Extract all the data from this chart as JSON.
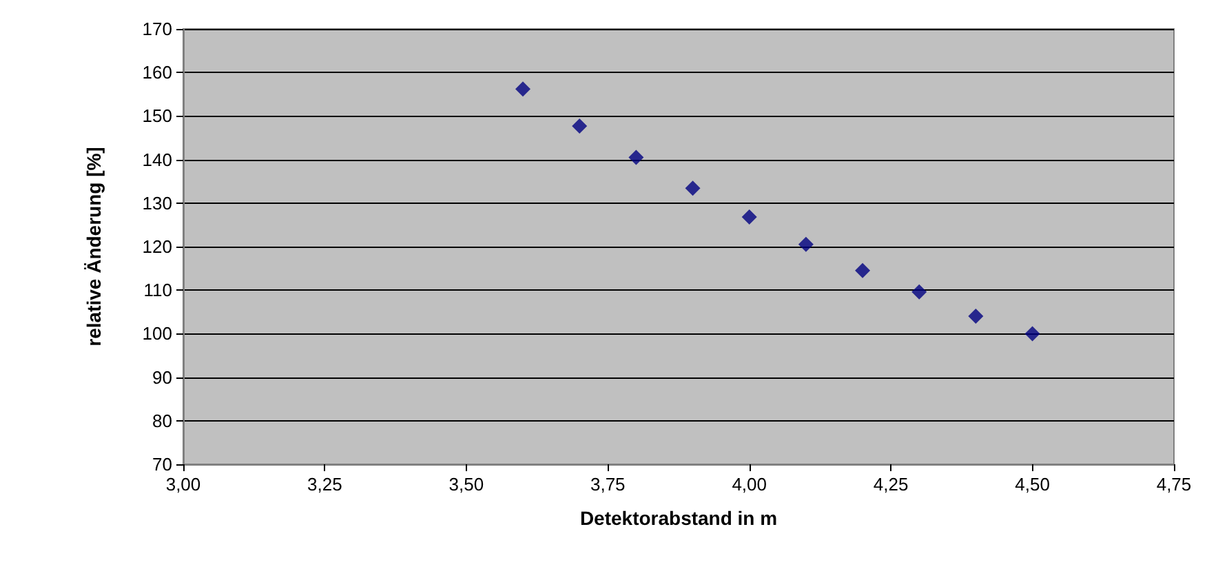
{
  "chart_data": {
    "type": "scatter",
    "xlabel": "Detektorabstand in m",
    "ylabel": "relative Änderung [%]",
    "x": [
      3.6,
      3.7,
      3.8,
      3.9,
      4.0,
      4.1,
      4.2,
      4.3,
      4.4,
      4.5
    ],
    "series": [
      {
        "color": "#000080",
        "values": [
          156.2,
          147.7,
          140.5,
          133.4,
          126.8,
          120.5,
          114.5,
          109.6,
          104,
          100
        ]
      }
    ],
    "xlim": [
      3,
      4.75
    ],
    "xticks": [
      {
        "value": 3,
        "label": "3,00"
      },
      {
        "value": 3.25,
        "label": "3,25"
      },
      {
        "value": 3.5,
        "label": "3,50"
      },
      {
        "value": 3.75,
        "label": "3,75"
      },
      {
        "value": 4,
        "label": "4,00"
      },
      {
        "value": 4.25,
        "label": "4,25"
      },
      {
        "value": 4.5,
        "label": "4,50"
      },
      {
        "value": 4.75,
        "label": "4,75"
      }
    ],
    "ylim": [
      70,
      170
    ],
    "yticks": [
      70,
      80,
      90,
      100,
      110,
      120,
      130,
      140,
      150,
      160,
      170
    ],
    "grid": "y",
    "marker": "diamond"
  }
}
